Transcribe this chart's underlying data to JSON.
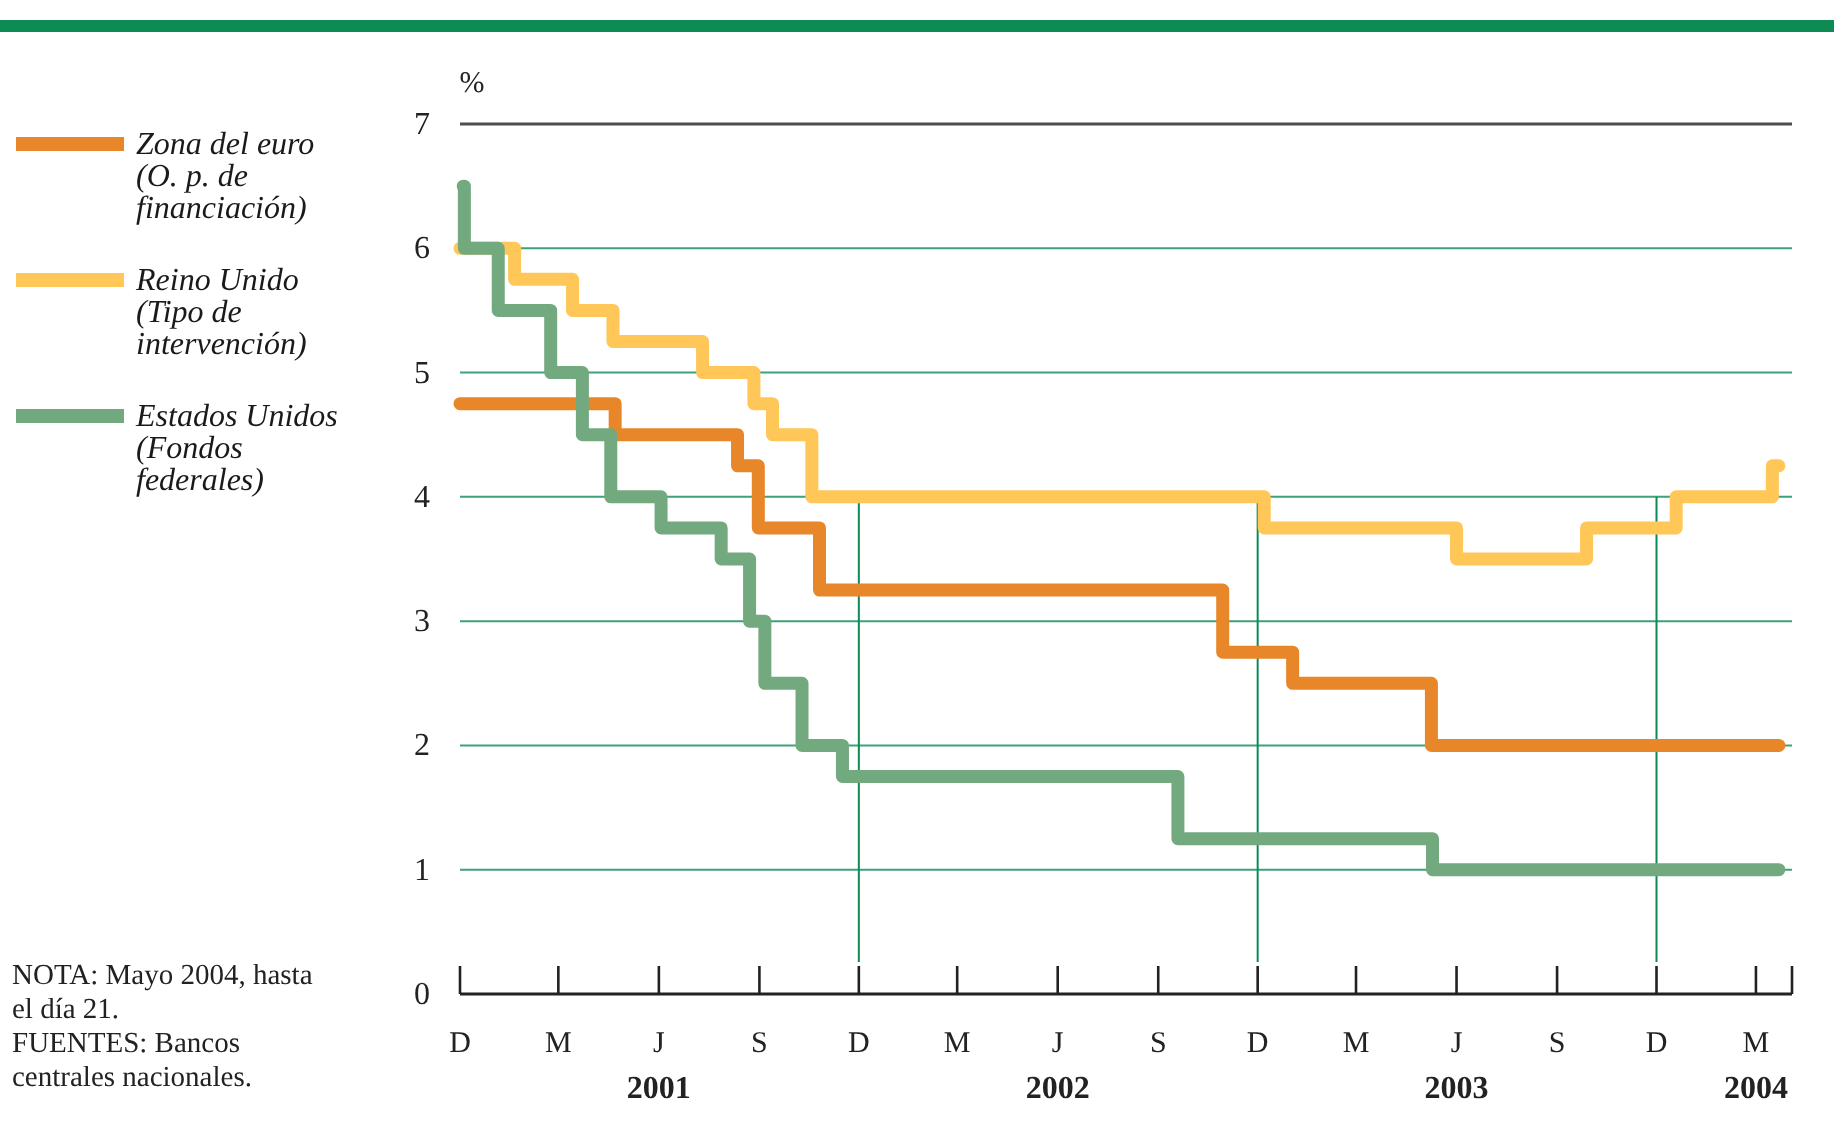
{
  "chart_data": {
    "type": "step",
    "ylabel": "%",
    "ylim": [
      0,
      7
    ],
    "yticks": [
      0,
      1,
      2,
      3,
      4,
      5,
      6,
      7
    ],
    "xlim": [
      "2000-12-01",
      "2004-04-03"
    ],
    "xticks": [
      {
        "value": "2000-12-01",
        "label": "D"
      },
      {
        "value": "2001-03-01",
        "label": "M"
      },
      {
        "value": "2001-06-01",
        "label": "J\n2001"
      },
      {
        "value": "2001-09-01",
        "label": "S"
      },
      {
        "value": "2001-12-01",
        "label": "D"
      },
      {
        "value": "2002-03-01",
        "label": "M"
      },
      {
        "value": "2002-06-01",
        "label": "J\n2002"
      },
      {
        "value": "2002-09-01",
        "label": "S"
      },
      {
        "value": "2002-12-01",
        "label": "D"
      },
      {
        "value": "2003-03-01",
        "label": "M"
      },
      {
        "value": "2003-06-01",
        "label": "J\n2003"
      },
      {
        "value": "2003-09-01",
        "label": "S"
      },
      {
        "value": "2003-12-01",
        "label": "D"
      },
      {
        "value": "2004-03-01",
        "label": "M\n2004"
      },
      {
        "value": "2004-04-03",
        "label": null
      }
    ],
    "grid": "y",
    "legend": "left",
    "line_style": "solid",
    "marker": "none",
    "ref_lines": [
      {
        "axis": "x",
        "value": "2001-12-01",
        "color": "#0e8a55"
      },
      {
        "axis": "x",
        "value": "2002-12-01",
        "color": "#0e8a55"
      },
      {
        "axis": "x",
        "value": "2003-12-01",
        "color": "#0e8a55"
      }
    ],
    "series": [
      {
        "name": "Zona del euro (O. p. de financiación)",
        "color": "#e8862a",
        "x": [
          "2000-12-01",
          "2001-04-22",
          "2001-08-12",
          "2001-08-31",
          "2001-10-26",
          "2002-10-30",
          "2003-01-02",
          "2003-05-09",
          "2004-03-22"
        ],
        "values": [
          4.75,
          4.5,
          4.25,
          3.75,
          3.25,
          2.75,
          2.5,
          2.0,
          2.0
        ]
      },
      {
        "name": "Reino Unido (Tipo de intervención)",
        "color": "#ffc658",
        "x": [
          "2000-12-01",
          "2001-01-20",
          "2001-03-14",
          "2001-04-20",
          "2001-07-11",
          "2001-08-27",
          "2001-09-13",
          "2001-10-19",
          "2002-12-07",
          "2003-06-01",
          "2003-09-28",
          "2003-12-19",
          "2004-03-16",
          "2004-03-22"
        ],
        "values": [
          6.0,
          5.75,
          5.5,
          5.25,
          5.0,
          4.75,
          4.5,
          4.0,
          3.75,
          3.5,
          3.75,
          4.0,
          4.25,
          4.25
        ]
      },
      {
        "name": "Estados Unidos (Fondos federales)",
        "color": "#73a97f",
        "x": [
          "2000-12-04",
          "2000-12-05",
          "2001-01-05",
          "2001-02-22",
          "2001-03-23",
          "2001-04-18",
          "2001-06-03",
          "2001-07-28",
          "2001-08-23",
          "2001-09-06",
          "2001-10-10",
          "2001-11-16",
          "2002-09-19",
          "2003-05-10",
          "2004-03-22"
        ],
        "values": [
          6.5,
          6.0,
          5.5,
          5.0,
          4.5,
          4.0,
          3.75,
          3.5,
          3.0,
          2.5,
          2.0,
          1.75,
          1.25,
          1.0,
          1.0
        ]
      }
    ],
    "annotations": [
      "NOTA: Mayo 2004, hasta el día 21.",
      "FUENTES: Bancos centrales nacionales."
    ]
  }
}
